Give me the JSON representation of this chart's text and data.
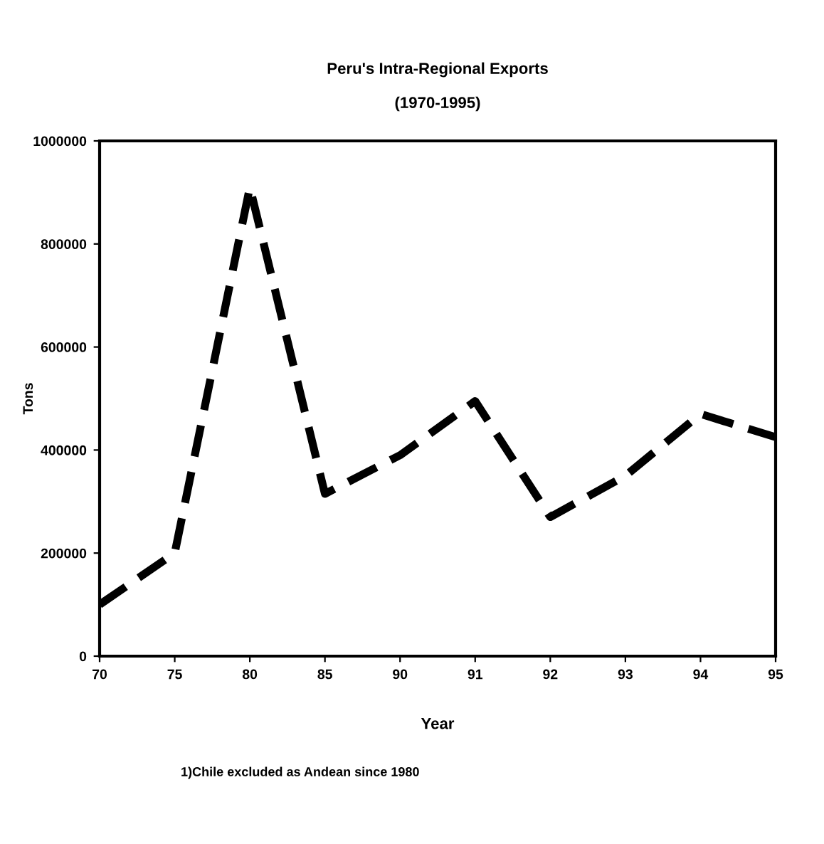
{
  "chart_data": {
    "type": "line",
    "title": "Peru's Intra-Regional Exports",
    "subtitle": "(1970-1995)",
    "xlabel": "Year",
    "ylabel": "Tons",
    "categories": [
      "70",
      "75",
      "80",
      "85",
      "90",
      "91",
      "92",
      "93",
      "94",
      "95"
    ],
    "series": [
      {
        "color": "#000000",
        "values": [
          100000,
          200000,
          910000,
          315000,
          390000,
          495000,
          270000,
          350000,
          470000,
          425000
        ]
      }
    ],
    "ylim": [
      0,
      1000000
    ],
    "yticks": [
      0,
      200000,
      400000,
      600000,
      800000,
      1000000
    ],
    "grid": false,
    "marker": "none",
    "line_style": "dashed",
    "annotations": [
      "1)Chile excluded as Andean since 1980"
    ]
  }
}
